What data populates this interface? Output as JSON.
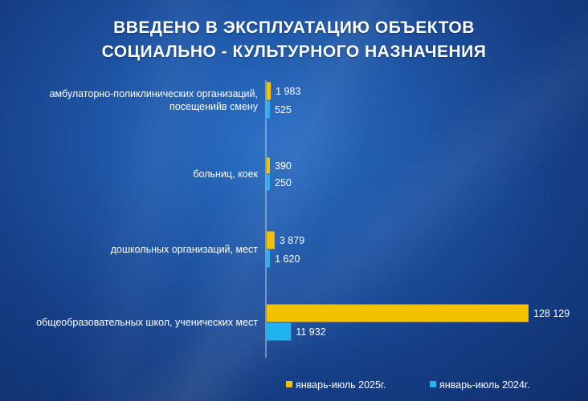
{
  "title_lines": [
    "ВВЕДЕНО В ЭКСПЛУАТАЦИЮ ОБЪЕКТОВ",
    "СОЦИАЛЬНО - КУЛЬТУРНОГО НАЗНАЧЕНИЯ"
  ],
  "colors": {
    "series_2025": "#f2c200",
    "series_2024": "#1fb3f0",
    "axis": "#d8e6f7"
  },
  "chart_data": {
    "type": "bar",
    "orientation": "horizontal",
    "title": "ВВЕДЕНО В ЭКСПЛУАТАЦИЮ ОБЪЕКТОВ СОЦИАЛЬНО - КУЛЬТУРНОГО НАЗНАЧЕНИЯ",
    "categories": [
      [
        "амбулаторно-поликлинических организаций,",
        "посещенийв смену"
      ],
      [
        "больниц, коек"
      ],
      [
        "дошкольных организаций, мест"
      ],
      [
        "общеобразовательных школ, ученических мест"
      ]
    ],
    "series": [
      {
        "name": "январь-июль 2025г.",
        "values": [
          1983,
          390,
          3879,
          128129
        ],
        "labels": [
          "1 983",
          "390",
          "3 879",
          "128 129"
        ]
      },
      {
        "name": "январь-июль 2024г.",
        "values": [
          525,
          250,
          1620,
          11932
        ],
        "labels": [
          "525",
          "250",
          "1 620",
          "11 932"
        ]
      }
    ],
    "xlim": [
      0,
      128129
    ],
    "grid": false,
    "legend_position": "bottom-right"
  }
}
